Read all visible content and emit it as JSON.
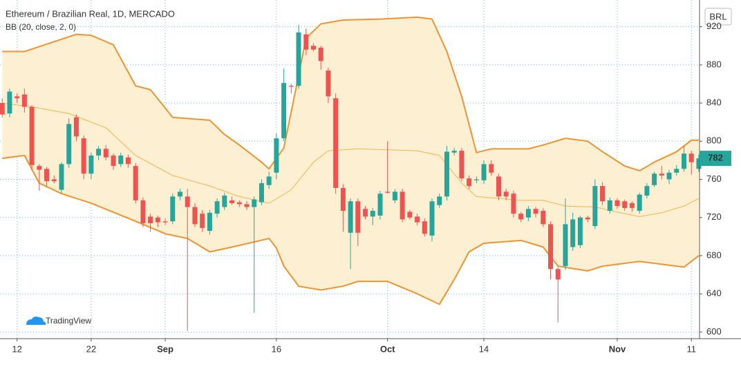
{
  "chart_data": {
    "type": "candlestick",
    "title": "Ethereum / Brazilian Real, 1D, MERCADO",
    "indicator": "BB (20, close, 2, 0)",
    "currency": "BRL",
    "brand": "TradingView",
    "up_color": "#26a69a",
    "down_color": "#ef5350",
    "grid": true,
    "xlim": [
      -0.3,
      94.1
    ],
    "ylim": [
      593,
      948
    ],
    "yticks": [
      600,
      640,
      680,
      720,
      760,
      800,
      840,
      880,
      920
    ],
    "xticks": [
      {
        "value": 2,
        "label": "12"
      },
      {
        "value": 12,
        "label": "22"
      },
      {
        "value": 22,
        "label": "Sep"
      },
      {
        "value": 37,
        "label": "16"
      },
      {
        "value": 52,
        "label": "Oct"
      },
      {
        "value": 65,
        "label": "14"
      },
      {
        "value": 83,
        "label": "Nov"
      },
      {
        "value": 93,
        "label": "11"
      }
    ],
    "open": [
      840,
      829,
      847,
      849,
      836,
      774,
      771,
      760,
      749,
      776,
      825,
      803,
      766,
      785,
      792,
      785,
      776,
      783,
      774,
      738,
      721,
      720,
      716,
      716,
      742,
      742,
      731,
      724,
      706,
      724,
      731,
      738,
      736,
      734,
      731,
      736,
      754,
      767,
      803,
      858,
      858,
      912,
      900,
      898,
      874,
      845,
      751,
      704,
      737,
      729,
      721,
      722,
      747,
      738,
      747,
      726,
      721,
      716,
      701,
      733,
      742,
      788,
      790,
      761,
      759,
      759,
      776,
      763,
      747,
      745,
      724,
      720,
      729,
      727,
      713,
      666,
      669,
      689,
      691,
      720,
      711,
      753,
      727,
      738,
      737,
      735,
      727,
      743,
      754,
      766,
      760,
      767,
      771,
      787,
      771
    ],
    "high": [
      845,
      855,
      850,
      855,
      838,
      776,
      773,
      764,
      778,
      824,
      828,
      806,
      788,
      795,
      796,
      787,
      788,
      786,
      777,
      741,
      724,
      722,
      719,
      745,
      750,
      750,
      735,
      728,
      728,
      740,
      746,
      742,
      738,
      737,
      742,
      760,
      768,
      808,
      876,
      860,
      922,
      918,
      903,
      900,
      877,
      850,
      755,
      740,
      740,
      732,
      730,
      748,
      800,
      750,
      750,
      728,
      724,
      719,
      740,
      745,
      795,
      793,
      793,
      764,
      763,
      780,
      780,
      766,
      750,
      748,
      726,
      732,
      731,
      730,
      716,
      668,
      740,
      725,
      722,
      722,
      760,
      757,
      741,
      740,
      739,
      737,
      746,
      756,
      768,
      774,
      770,
      775,
      795,
      790,
      786
    ],
    "low": [
      825,
      825,
      840,
      830,
      770,
      748,
      752,
      756,
      745,
      772,
      800,
      760,
      760,
      780,
      780,
      770,
      773,
      772,
      735,
      710,
      705,
      710,
      712,
      713,
      738,
      601,
      710,
      705,
      702,
      720,
      728,
      733,
      731,
      728,
      620,
      733,
      750,
      760,
      800,
      850,
      855,
      890,
      894,
      875,
      840,
      745,
      705,
      666,
      690,
      718,
      712,
      718,
      745,
      735,
      715,
      718,
      712,
      700,
      695,
      730,
      738,
      785,
      758,
      750,
      756,
      755,
      764,
      738,
      738,
      720,
      715,
      716,
      720,
      710,
      655,
      610,
      665,
      685,
      688,
      715,
      708,
      733,
      724,
      729,
      727,
      726,
      724,
      740,
      752,
      760,
      755,
      764,
      768,
      765,
      768
    ],
    "close": [
      828,
      852,
      845,
      836,
      775,
      770,
      758,
      758,
      776,
      818,
      805,
      766,
      785,
      792,
      783,
      774,
      785,
      776,
      738,
      714,
      714,
      715,
      715,
      742,
      747,
      731,
      713,
      709,
      725,
      737,
      743,
      735,
      734,
      731,
      739,
      756,
      763,
      803,
      861,
      857,
      914,
      896,
      896,
      884,
      847,
      751,
      727,
      737,
      704,
      721,
      727,
      745,
      746,
      747,
      718,
      720,
      715,
      703,
      737,
      742,
      789,
      790,
      761,
      753,
      760,
      776,
      767,
      742,
      742,
      724,
      718,
      729,
      724,
      713,
      666,
      655,
      713,
      718,
      720,
      718,
      753,
      737,
      738,
      732,
      730,
      730,
      744,
      753,
      766,
      764,
      767,
      771,
      787,
      778,
      782
    ],
    "upper": {
      "color": "#f0922e",
      "x": [
        0,
        3,
        10,
        12,
        15,
        18,
        20,
        23,
        28,
        30,
        32,
        35,
        36,
        38,
        40,
        41,
        43,
        46,
        51,
        56,
        58,
        60,
        62,
        64,
        66,
        71,
        73,
        76,
        79,
        81,
        84,
        86,
        88,
        91,
        93,
        94
      ],
      "values": [
        894,
        894,
        912,
        911,
        901,
        858,
        854,
        825,
        822,
        807,
        796,
        778,
        771,
        793,
        869,
        908,
        923,
        927,
        928,
        930,
        928,
        894,
        847,
        788,
        792,
        792,
        796,
        803,
        800,
        789,
        774,
        769,
        778,
        789,
        801,
        801
      ]
    },
    "middle": {
      "color": "#f5b349",
      "x": [
        0,
        4,
        9,
        14,
        18,
        23,
        28,
        32,
        36,
        39,
        42,
        44,
        48,
        56,
        59,
        62,
        64,
        70,
        73,
        76,
        80,
        84,
        86,
        89,
        92,
        94
      ],
      "values": [
        840,
        836,
        829,
        814,
        785,
        764,
        753,
        742,
        735,
        749,
        778,
        790,
        792,
        790,
        785,
        756,
        742,
        738,
        738,
        732,
        731,
        724,
        721,
        725,
        732,
        740
      ]
    },
    "lower": {
      "color": "#f0922e",
      "x": [
        0,
        3,
        5,
        8,
        12,
        18,
        22,
        25,
        28,
        31,
        36,
        37,
        38,
        40,
        43,
        46,
        48,
        52,
        56,
        59,
        61,
        63,
        65,
        70,
        73,
        75,
        79,
        81,
        86,
        89,
        92,
        94
      ],
      "values": [
        782,
        785,
        756,
        745,
        735,
        716,
        703,
        698,
        684,
        689,
        698,
        688,
        669,
        648,
        644,
        648,
        653,
        653,
        640,
        629,
        655,
        684,
        693,
        696,
        689,
        669,
        664,
        669,
        674,
        671,
        668,
        680
      ]
    },
    "band_fill": "#fdefd2"
  }
}
